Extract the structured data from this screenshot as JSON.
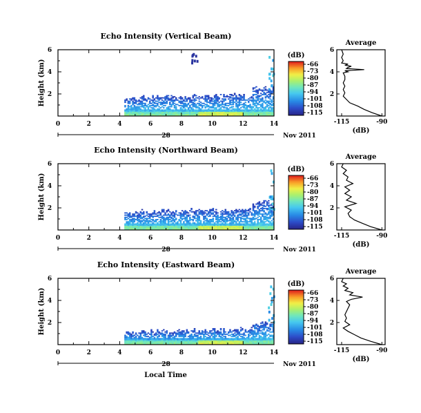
{
  "chart_data": [
    {
      "type": "heatmap",
      "title": "Echo Intensity (Vertical Beam)",
      "ylabel": "Height (km)",
      "xlim": [
        0,
        14
      ],
      "ylim": [
        0,
        6
      ],
      "x_ticks": [
        "0",
        "2",
        "4",
        "6",
        "8",
        "10",
        "12",
        "14"
      ],
      "y_ticks": [
        "2",
        "4",
        "6"
      ],
      "date_day": "28",
      "date_label": "Nov 2011",
      "colorbar_unit": "(dB)",
      "colorbar_ticks": [
        "-66",
        "-73",
        "-80",
        "-87",
        "-94",
        "-101",
        "-108",
        "-115"
      ],
      "profile": {
        "title": "Average",
        "xlabel": "(dB)",
        "x_ticks": [
          "-115",
          "-90"
        ],
        "y_ticks": [
          "2",
          "4",
          "6"
        ],
        "height": [
          0.0,
          0.3,
          0.6,
          0.9,
          1.2,
          1.5,
          1.8,
          2.1,
          2.4,
          2.7,
          3.0,
          3.3,
          3.6,
          3.9,
          4.0,
          4.1,
          4.2,
          4.3,
          4.4,
          4.5,
          4.6,
          4.7,
          4.8,
          5.0,
          5.3,
          5.6,
          6.0
        ],
        "value": [
          -90,
          -96,
          -101,
          -105,
          -110,
          -112,
          -114,
          -113,
          -114,
          -113,
          -114,
          -113,
          -113,
          -114,
          -111,
          -113,
          -101,
          -112,
          -111,
          -109,
          -113,
          -111,
          -115,
          -114,
          -115,
          -114,
          -115
        ]
      }
    },
    {
      "type": "heatmap",
      "title": "Echo Intensity (Northward Beam)",
      "ylabel": "Height (km)",
      "xlim": [
        0,
        14
      ],
      "ylim": [
        0,
        6
      ],
      "x_ticks": [
        "0",
        "2",
        "4",
        "6",
        "8",
        "10",
        "12",
        "14"
      ],
      "y_ticks": [
        "2",
        "4",
        "6"
      ],
      "date_day": "28",
      "date_label": "Nov 2011",
      "colorbar_unit": "(dB)",
      "colorbar_ticks": [
        "-66",
        "-73",
        "-80",
        "-87",
        "-94",
        "-101",
        "-108",
        "-115"
      ],
      "profile": {
        "title": "Average",
        "xlabel": "(dB)",
        "x_ticks": [
          "-115",
          "-90"
        ],
        "y_ticks": [
          "2",
          "4",
          "6"
        ],
        "height": [
          0.0,
          0.3,
          0.6,
          0.9,
          1.2,
          1.5,
          1.8,
          2.1,
          2.4,
          2.7,
          3.0,
          3.3,
          3.6,
          3.9,
          4.2,
          4.5,
          4.8,
          5.1,
          5.4,
          5.7,
          6.0
        ],
        "value": [
          -90,
          -97,
          -102,
          -107,
          -110,
          -111,
          -109,
          -113,
          -106,
          -112,
          -109,
          -113,
          -110,
          -113,
          -108,
          -112,
          -111,
          -114,
          -112,
          -115,
          -114
        ]
      }
    },
    {
      "type": "heatmap",
      "title": "Echo Intensity (Eastward Beam)",
      "ylabel": "Height (km)",
      "xlabel": "Local Time",
      "xlim": [
        0,
        14
      ],
      "ylim": [
        0,
        6
      ],
      "x_ticks": [
        "0",
        "2",
        "4",
        "6",
        "8",
        "10",
        "12",
        "14"
      ],
      "y_ticks": [
        "2",
        "4",
        "6"
      ],
      "date_day": "28",
      "date_label": "Nov 2011",
      "colorbar_unit": "(dB)",
      "colorbar_ticks": [
        "-66",
        "-73",
        "-80",
        "-87",
        "-94",
        "-101",
        "-108",
        "-115"
      ],
      "profile": {
        "title": "Average",
        "xlabel": "(dB)",
        "x_ticks": [
          "-115",
          "-90"
        ],
        "y_ticks": [
          "2",
          "4",
          "6"
        ],
        "height": [
          0.0,
          0.3,
          0.6,
          0.9,
          1.2,
          1.5,
          1.8,
          2.1,
          2.4,
          2.7,
          3.0,
          3.3,
          3.6,
          3.9,
          4.1,
          4.3,
          4.5,
          4.7,
          4.9,
          5.1,
          5.3,
          5.5,
          5.7,
          6.0
        ],
        "value": [
          -90,
          -97,
          -103,
          -107,
          -111,
          -114,
          -110,
          -113,
          -112,
          -113,
          -112,
          -111,
          -110,
          -112,
          -109,
          -102,
          -110,
          -108,
          -113,
          -111,
          -114,
          -112,
          -115,
          -114
        ]
      }
    }
  ]
}
